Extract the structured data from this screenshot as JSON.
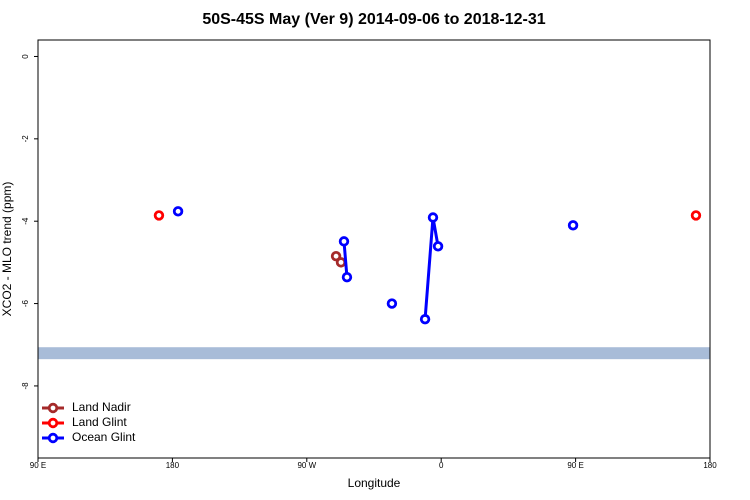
{
  "chart_data": {
    "type": "line",
    "title": "50S-45S May (Ver 9)   2014-09-06 to 2018-12-31",
    "x_label": "Longitude",
    "y_label": "XCO2 - MLO trend (ppm)",
    "xlim": [
      90,
      540
    ],
    "ylim": [
      -9.75,
      0.4
    ],
    "xticks": [
      {
        "value": 90,
        "label": "90 E"
      },
      {
        "value": 180,
        "label": "180"
      },
      {
        "value": 270,
        "label": "90 W"
      },
      {
        "value": 360,
        "label": "0"
      },
      {
        "value": 450,
        "label": "90 E"
      },
      {
        "value": 540,
        "label": "180"
      }
    ],
    "yticks": [
      0,
      -2,
      -4,
      -6,
      -8
    ],
    "band": {
      "range": [
        -7.35,
        -7.06
      ],
      "color": "#a8bcd8"
    },
    "legend": "bottom-left",
    "series": [
      {
        "name": "Land Nadir",
        "color": "#a52a2a",
        "x": [
          289.6,
          292.9
        ],
        "values": [
          -4.85,
          -5.0
        ]
      },
      {
        "name": "Land Glint",
        "color": "#ff0000",
        "x": [
          171,
          null,
          530.6
        ],
        "values": [
          -3.86,
          null,
          -3.86
        ]
      },
      {
        "name": "Ocean Glint",
        "color": "#0000ff",
        "x": [
          183.8,
          null,
          294.9,
          296.9,
          null,
          327,
          null,
          349.2,
          354.5,
          357.9,
          null,
          448.3
        ],
        "values": [
          -3.76,
          null,
          -4.49,
          -5.36,
          null,
          -6.0,
          null,
          -6.38,
          -3.91,
          -4.61,
          null,
          -4.1
        ]
      }
    ]
  }
}
